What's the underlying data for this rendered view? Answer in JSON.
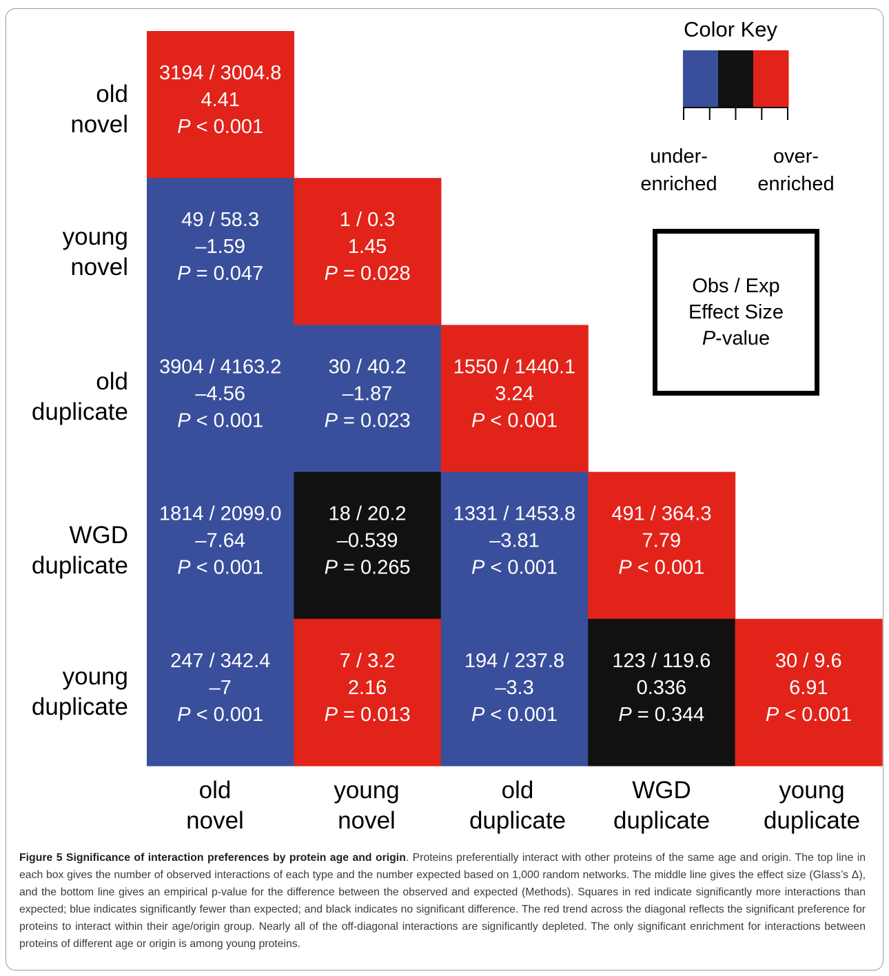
{
  "chart_data": {
    "type": "heatmap",
    "rows": [
      {
        "label_line1": "old",
        "label_line2": "novel"
      },
      {
        "label_line1": "young",
        "label_line2": "novel"
      },
      {
        "label_line1": "old",
        "label_line2": "duplicate"
      },
      {
        "label_line1": "WGD",
        "label_line2": "duplicate"
      },
      {
        "label_line1": "young",
        "label_line2": "duplicate"
      }
    ],
    "columns": [
      {
        "label_line1": "old",
        "label_line2": "novel"
      },
      {
        "label_line1": "young",
        "label_line2": "novel"
      },
      {
        "label_line1": "old",
        "label_line2": "duplicate"
      },
      {
        "label_line1": "WGD",
        "label_line2": "duplicate"
      },
      {
        "label_line1": "young",
        "label_line2": "duplicate"
      }
    ],
    "cells": [
      {
        "row": 0,
        "col": 0,
        "observed": 3194,
        "expected": "3004.8",
        "effect_size": "4.41",
        "p_op": "<",
        "p_value": "0.001",
        "status": "over"
      },
      {
        "row": 1,
        "col": 0,
        "observed": 49,
        "expected": "58.3",
        "effect_size": "–1.59",
        "p_op": "=",
        "p_value": "0.047",
        "status": "under"
      },
      {
        "row": 1,
        "col": 1,
        "observed": 1,
        "expected": "0.3",
        "effect_size": "1.45",
        "p_op": "=",
        "p_value": "0.028",
        "status": "over"
      },
      {
        "row": 2,
        "col": 0,
        "observed": 3904,
        "expected": "4163.2",
        "effect_size": "–4.56",
        "p_op": "<",
        "p_value": "0.001",
        "status": "under"
      },
      {
        "row": 2,
        "col": 1,
        "observed": 30,
        "expected": "40.2",
        "effect_size": "–1.87",
        "p_op": "=",
        "p_value": "0.023",
        "status": "under"
      },
      {
        "row": 2,
        "col": 2,
        "observed": 1550,
        "expected": "1440.1",
        "effect_size": "3.24",
        "p_op": "<",
        "p_value": "0.001",
        "status": "over"
      },
      {
        "row": 3,
        "col": 0,
        "observed": 1814,
        "expected": "2099.0",
        "effect_size": "–7.64",
        "p_op": "<",
        "p_value": "0.001",
        "status": "under"
      },
      {
        "row": 3,
        "col": 1,
        "observed": 18,
        "expected": "20.2",
        "effect_size": "–0.539",
        "p_op": "=",
        "p_value": "0.265",
        "status": "ns"
      },
      {
        "row": 3,
        "col": 2,
        "observed": 1331,
        "expected": "1453.8",
        "effect_size": "–3.81",
        "p_op": "<",
        "p_value": "0.001",
        "status": "under"
      },
      {
        "row": 3,
        "col": 3,
        "observed": 491,
        "expected": "364.3",
        "effect_size": "7.79",
        "p_op": "<",
        "p_value": "0.001",
        "status": "over"
      },
      {
        "row": 4,
        "col": 0,
        "observed": 247,
        "expected": "342.4",
        "effect_size": "–7",
        "p_op": "<",
        "p_value": "0.001",
        "status": "under"
      },
      {
        "row": 4,
        "col": 1,
        "observed": 7,
        "expected": "3.2",
        "effect_size": "2.16",
        "p_op": "=",
        "p_value": "0.013",
        "status": "over"
      },
      {
        "row": 4,
        "col": 2,
        "observed": 194,
        "expected": "237.8",
        "effect_size": "–3.3",
        "p_op": "<",
        "p_value": "0.001",
        "status": "under"
      },
      {
        "row": 4,
        "col": 3,
        "observed": 123,
        "expected": "119.6",
        "effect_size": "0.336",
        "p_op": "=",
        "p_value": "0.344",
        "status": "ns"
      },
      {
        "row": 4,
        "col": 4,
        "observed": 30,
        "expected": "9.6",
        "effect_size": "6.91",
        "p_op": "<",
        "p_value": "0.001",
        "status": "over"
      }
    ],
    "colors": {
      "under": "#3a4f9b",
      "ns": "#111111",
      "over": "#e2231a"
    },
    "color_key": {
      "title": "Color Key",
      "scale_colors": [
        "#3a4f9b",
        "#111111",
        "#e2231a"
      ],
      "tick_count": 5,
      "under_line1": "under-",
      "under_line2": "enriched",
      "over_line1": "over-",
      "over_line2": "enriched"
    },
    "cell_legend": {
      "line1": "Obs / Exp",
      "line2": "Effect Size",
      "line3_italic": "P",
      "line3_rest": "-value"
    }
  },
  "caption": {
    "title": "Figure 5 Significance of interaction preferences by protein age and origin",
    "body": ". Proteins preferentially interact with other proteins of the same age and origin. The top line in each box gives the number of observed interactions of each type and the number expected based on 1,000 random networks. The middle line gives the effect size (Glass’s Δ), and the bottom line gives an empirical p-value for the difference between the observed and expected (Methods). Squares in red indicate significantly more interactions than expected; blue indicates significantly fewer than expected; and black indicates no significant difference. The red trend across the diagonal reflects the significant preference for proteins to interact within their age/origin group. Nearly all of the off-diagonal interactions are significantly depleted. The only significant enrichment for interactions between proteins of different age or origin is among young proteins."
  }
}
